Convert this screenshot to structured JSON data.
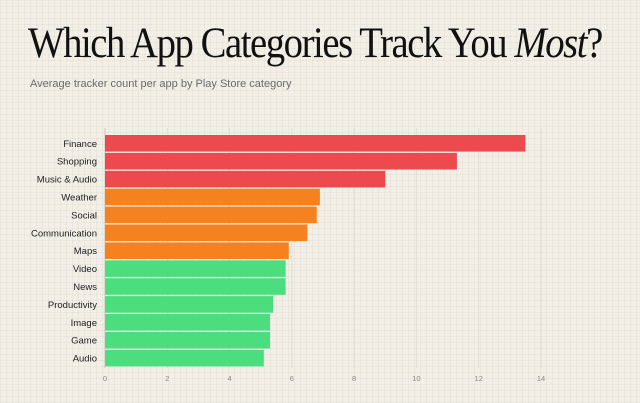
{
  "chart_data": {
    "type": "bar",
    "orientation": "horizontal",
    "title_parts": [
      "Which App Categories Track You ",
      "Most",
      "?"
    ],
    "subtitle": "Average tracker count per app by Play Store category",
    "categories": [
      "Finance",
      "Shopping",
      "Music & Audio",
      "Weather",
      "Social",
      "Communication",
      "Maps",
      "Video",
      "News",
      "Productivity",
      "Image",
      "Game",
      "Audio"
    ],
    "values": [
      13.5,
      11.3,
      9.0,
      6.9,
      6.8,
      6.5,
      5.9,
      5.8,
      5.8,
      5.4,
      5.3,
      5.3,
      5.1
    ],
    "bar_colors": [
      "#ec4a4f",
      "#ec4a4f",
      "#ec4a4f",
      "#f5821f",
      "#f5821f",
      "#f5821f",
      "#f5821f",
      "#4cde7e",
      "#4cde7e",
      "#4cde7e",
      "#4cde7e",
      "#4cde7e",
      "#4cde7e"
    ],
    "xlim": [
      0,
      14
    ],
    "xticks": [
      0,
      2,
      4,
      6,
      8,
      10,
      12,
      14
    ],
    "xlabel": "",
    "ylabel": "",
    "grid": "vertical",
    "legend": "none"
  }
}
